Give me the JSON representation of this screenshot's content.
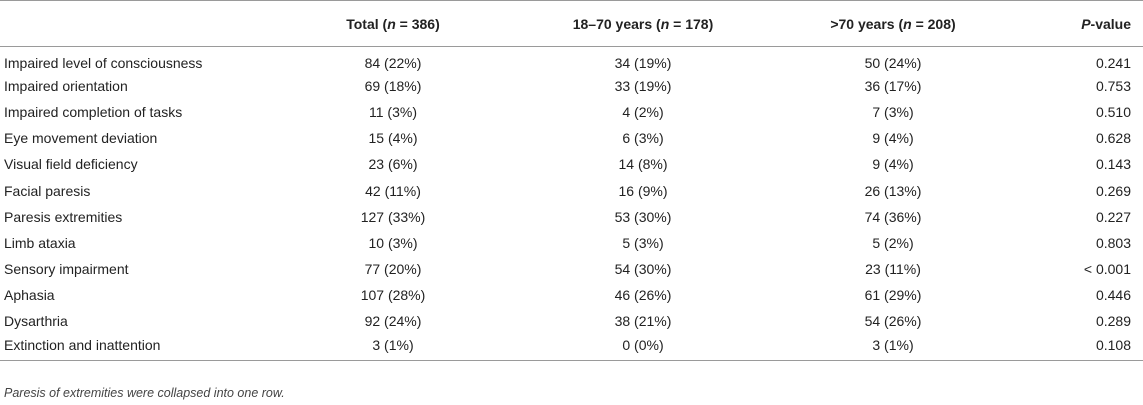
{
  "table": {
    "headers": {
      "label": "",
      "total": {
        "pre": "Total (",
        "n": "n",
        "post": " = 386)"
      },
      "young": {
        "pre": "18–70 years (",
        "n": "n",
        "post": " = 178)"
      },
      "old": {
        "pre": ">70 years (",
        "n": "n",
        "post": " = 208)"
      },
      "p": {
        "pre": "",
        "n": "P",
        "post": "-value"
      }
    },
    "rows": [
      {
        "label": "Impaired level of consciousness",
        "total": "84 (22%)",
        "young": "34 (19%)",
        "old": "50 (24%)",
        "p": "0.241"
      },
      {
        "label": "Impaired orientation",
        "total": "69 (18%)",
        "young": "33 (19%)",
        "old": "36 (17%)",
        "p": "0.753"
      },
      {
        "label": "Impaired completion of tasks",
        "total": "11 (3%)",
        "young": "4 (2%)",
        "old": "7 (3%)",
        "p": "0.510"
      },
      {
        "label": "Eye movement deviation",
        "total": "15 (4%)",
        "young": "6 (3%)",
        "old": "9 (4%)",
        "p": "0.628"
      },
      {
        "label": "Visual field deficiency",
        "total": "23 (6%)",
        "young": "14 (8%)",
        "old": "9 (4%)",
        "p": "0.143"
      },
      {
        "label": "Facial paresis",
        "total": "42 (11%)",
        "young": "16 (9%)",
        "old": "26 (13%)",
        "p": "0.269"
      },
      {
        "label": "Paresis extremities",
        "total": "127 (33%)",
        "young": "53 (30%)",
        "old": "74 (36%)",
        "p": "0.227"
      },
      {
        "label": "Limb ataxia",
        "total": "10 (3%)",
        "young": "5 (3%)",
        "old": "5 (2%)",
        "p": "0.803"
      },
      {
        "label": "Sensory impairment",
        "total": "77 (20%)",
        "young": "54 (30%)",
        "old": "23 (11%)",
        "p": "< 0.001"
      },
      {
        "label": "Aphasia",
        "total": "107 (28%)",
        "young": "46 (26%)",
        "old": "61 (29%)",
        "p": "0.446"
      },
      {
        "label": "Dysarthria",
        "total": "92 (24%)",
        "young": "38 (21%)",
        "old": "54 (26%)",
        "p": "0.289"
      },
      {
        "label": "Extinction and inattention",
        "total": "3 (1%)",
        "young": "0 (0%)",
        "old": "3 (1%)",
        "p": "0.108"
      }
    ]
  },
  "footnote": "Paresis of extremities were collapsed into one row."
}
